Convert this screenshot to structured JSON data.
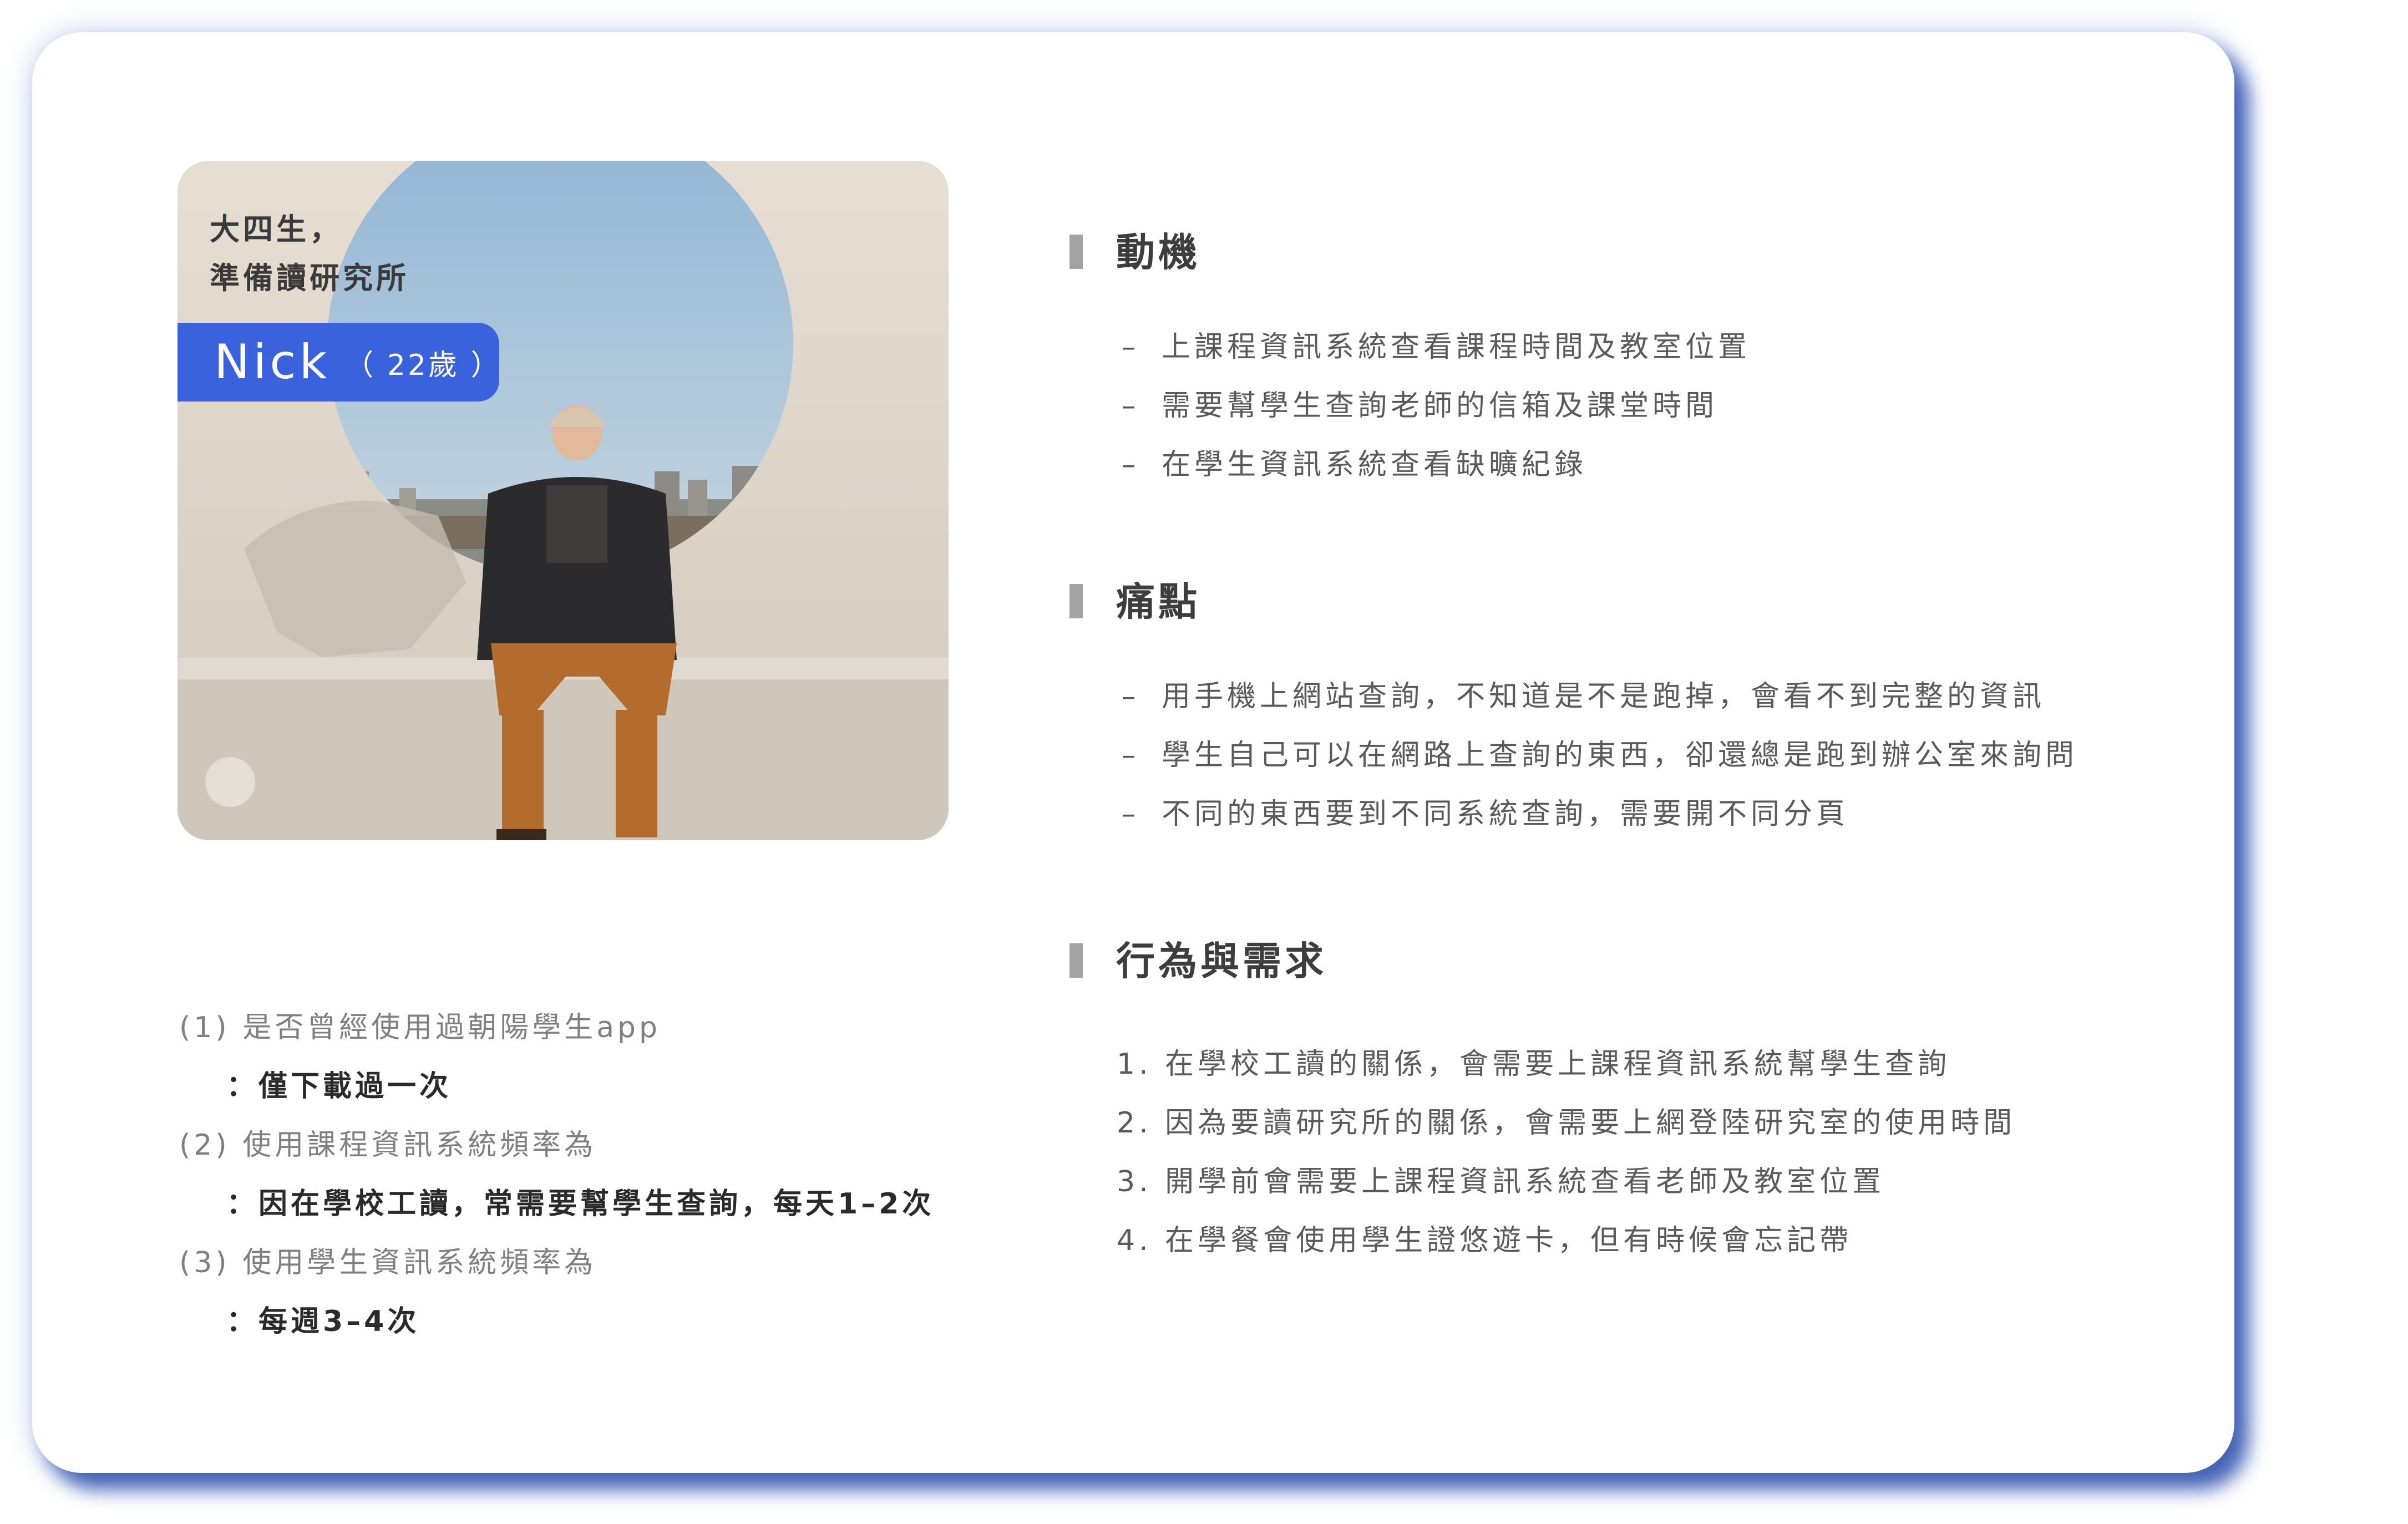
{
  "persona": {
    "caption_line1": "大四生，",
    "caption_line2": "準備讀研究所",
    "name": "Nick",
    "age": "（ 22歲 ）"
  },
  "motivation": {
    "title": "動機",
    "items": [
      "上課程資訊系統查看課程時間及教室位置",
      "需要幫學生查詢老師的信箱及課堂時間",
      "在學生資訊系統查看缺曠紀錄"
    ]
  },
  "pain_points": {
    "title": "痛點",
    "items": [
      "用手機上網站查詢，不知道是不是跑掉，會看不到完整的資訊",
      "學生自己可以在網路上查詢的東西，卻還總是跑到辦公室來詢問",
      "不同的東西要到不同系統查詢，需要開不同分頁"
    ]
  },
  "behavior": {
    "title": "行為與需求",
    "items": [
      "1. 在學校工讀的關係，會需要上課程資訊系統幫學生查詢",
      "2. 因為要讀研究所的關係，會需要上網登陸研究室的使用時間",
      "3. 開學前會需要上課程資訊系統查看老師及教室位置",
      "4. 在學餐會使用學生證悠遊卡，但有時候會忘記帶"
    ]
  },
  "dash": "–",
  "qa": [
    {
      "q": "(1) 是否曾經使用過朝陽學生app",
      "a": "：僅下載過一次"
    },
    {
      "q": "(2) 使用課程資訊系統頻率為",
      "a": "：因在學校工讀，常需要幫學生查詢，每天1–2次"
    },
    {
      "q": "(3) 使用學生資訊系統頻率為",
      "a": "：每週3–4次"
    }
  ],
  "colors": {
    "accent": "#3a62dc",
    "card_shadow": "#284baa",
    "heading": "#3d3d3d",
    "body_text": "#5a5a5a",
    "question_text": "#808080"
  }
}
